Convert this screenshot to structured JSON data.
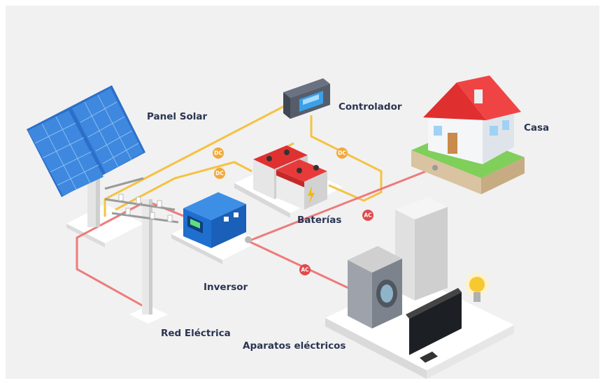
{
  "nodes": [
    {
      "label": "Panel Solar"
    },
    {
      "label": "Controlador"
    },
    {
      "label": "Casa"
    },
    {
      "label": "Baterías"
    },
    {
      "label": "Inversor"
    },
    {
      "label": "Red Eléctrica"
    },
    {
      "label": "Aparatos eléctricos"
    }
  ],
  "connections": [
    {
      "label": "DC"
    },
    {
      "label": "DC"
    },
    {
      "label": "DC"
    },
    {
      "label": "AC"
    },
    {
      "label": "AC"
    }
  ]
}
